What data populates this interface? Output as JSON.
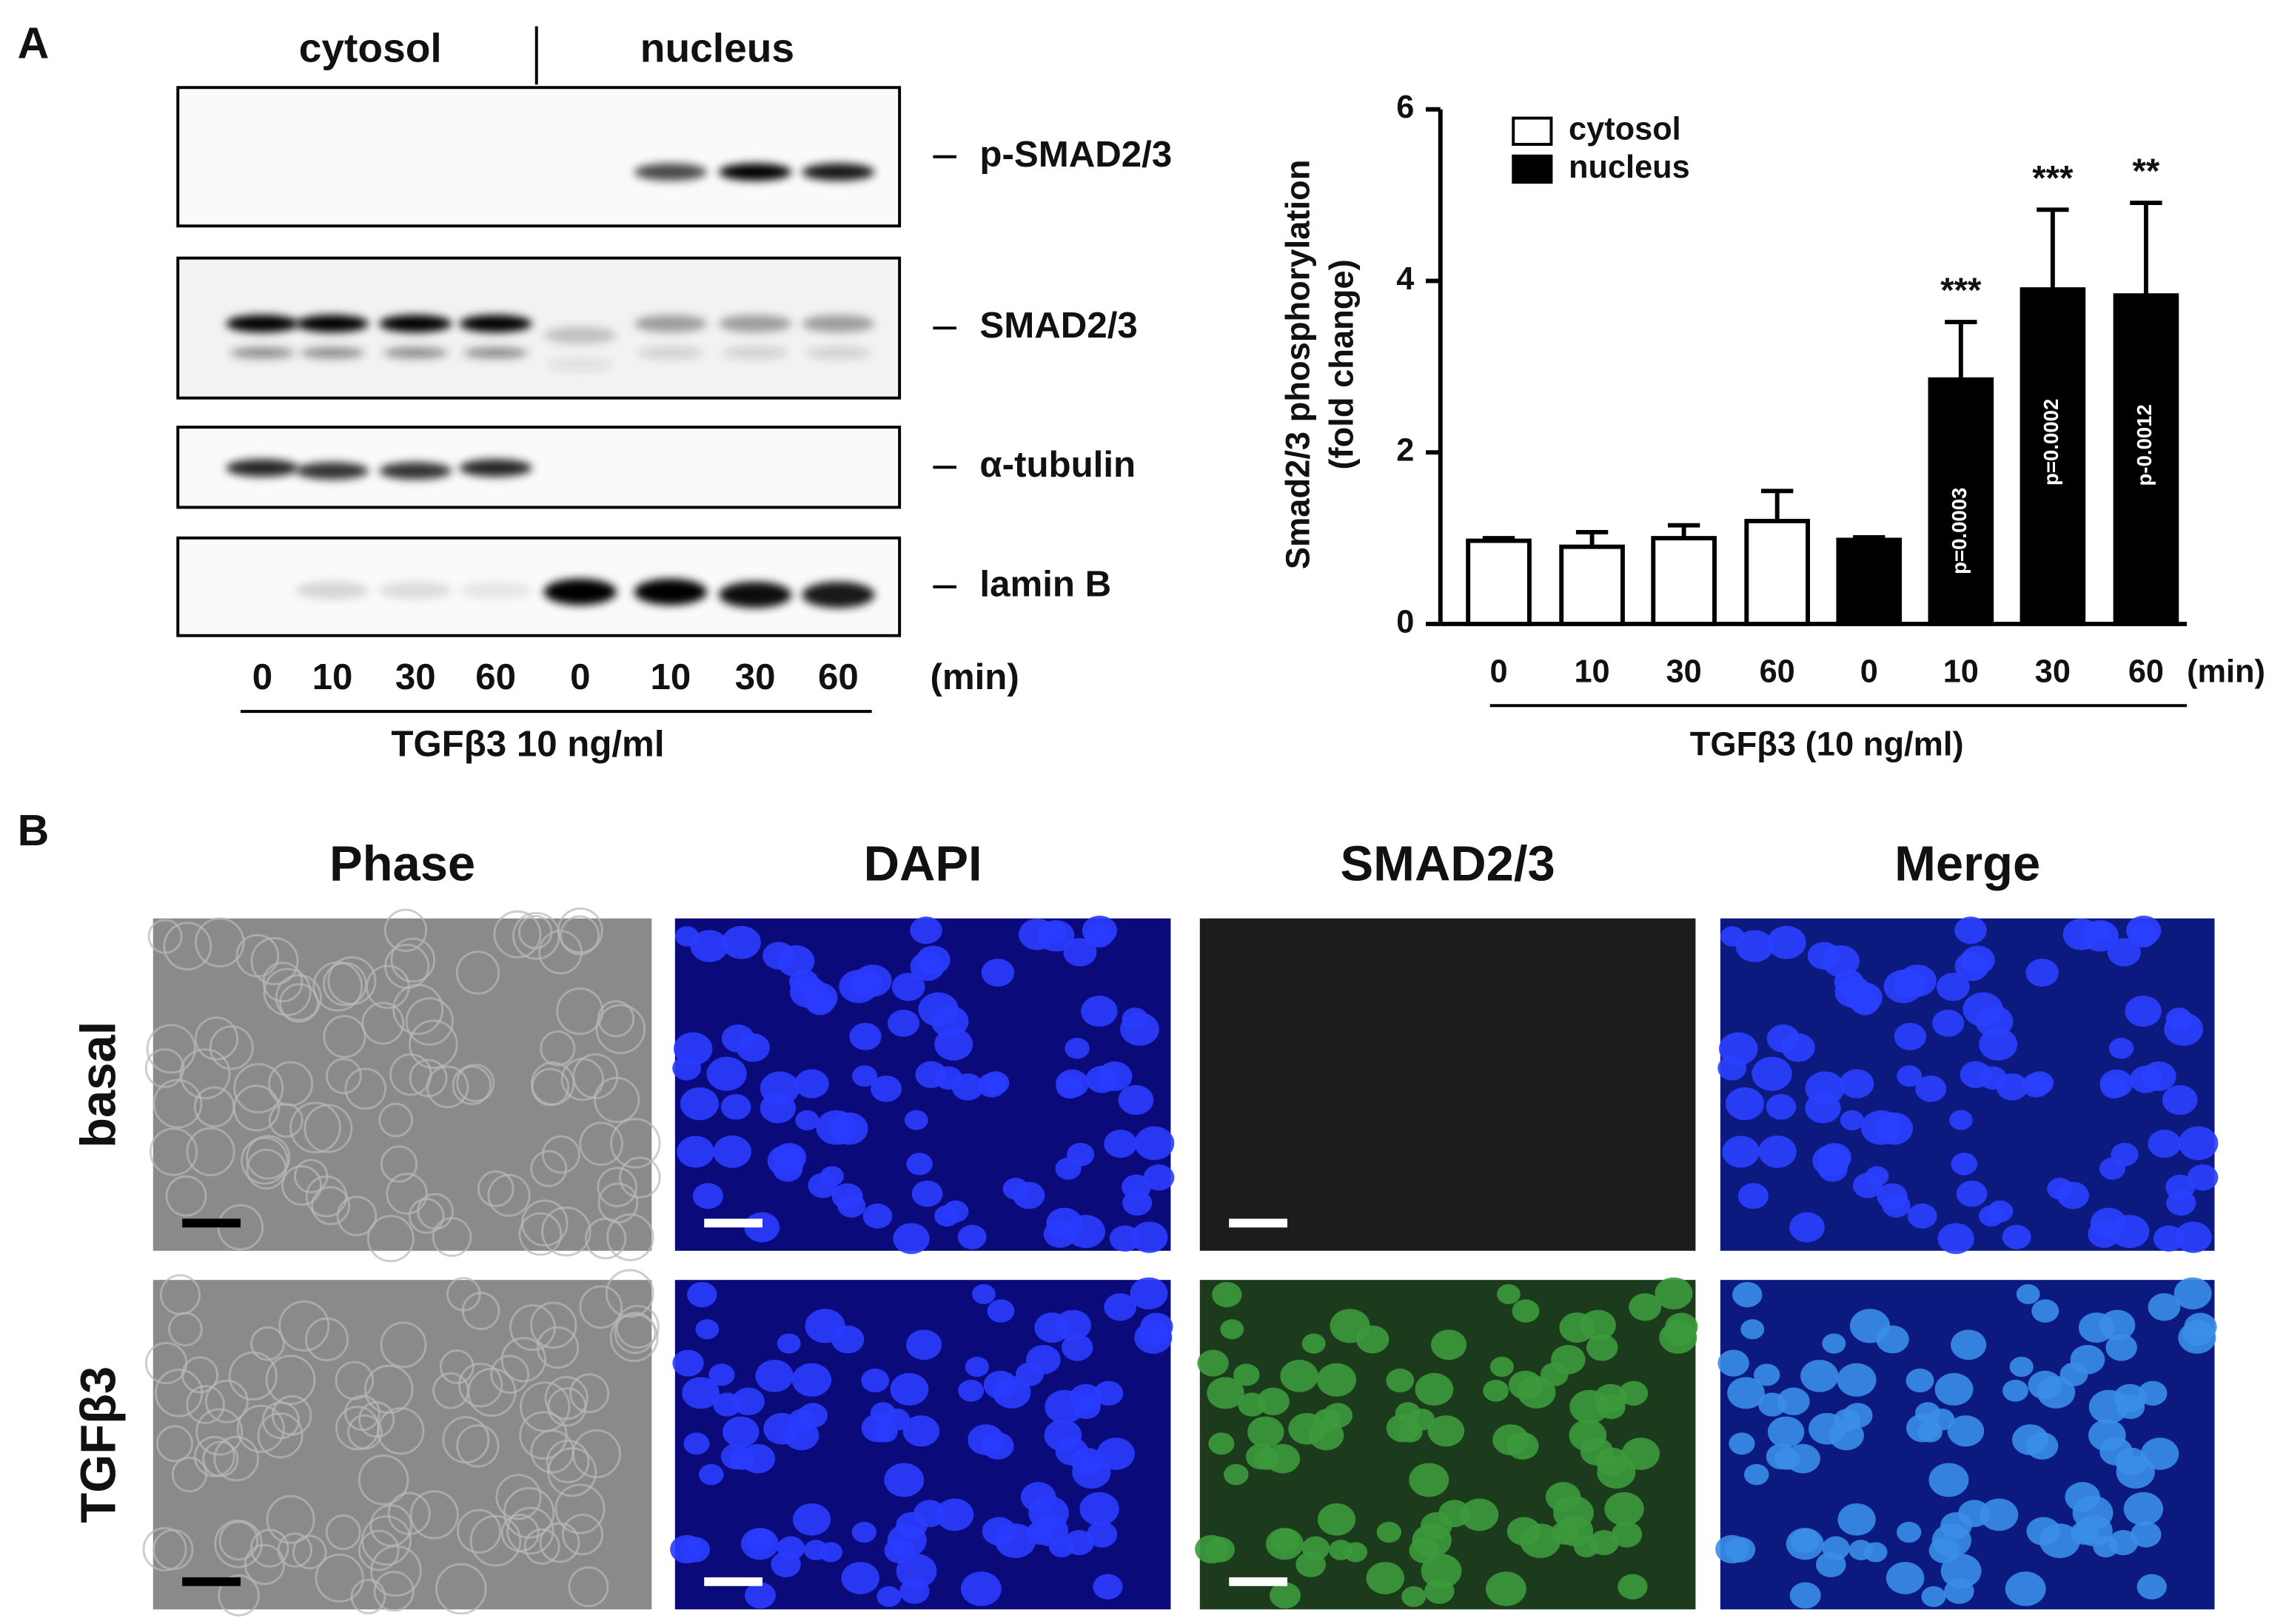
{
  "panel_a": {
    "label": "A",
    "fractions": [
      "cytosol",
      "nucleus"
    ],
    "proteins": [
      "p-SMAD2/3",
      "SMAD2/3",
      "α-tubulin",
      "lamin B"
    ],
    "lanes": [
      "0",
      "10",
      "30",
      "60",
      "0",
      "10",
      "30",
      "60"
    ],
    "time_unit": "(min)",
    "treatment": "TGFβ3 10 ng/ml"
  },
  "chart_data": {
    "type": "bar",
    "ylabel_lines": [
      "Smad2/3 phosphorylation",
      "(fold change)"
    ],
    "categories": [
      "0",
      "10",
      "30",
      "60",
      "0",
      "10",
      "30",
      "60"
    ],
    "x_unit": "(min)",
    "xlabel": "TGFβ3 (10 ng/ml)",
    "ylim": [
      0,
      6
    ],
    "yticks": [
      0,
      2,
      4,
      6
    ],
    "series": [
      {
        "name": "cytosol",
        "color": "#ffffff",
        "values": [
          0.97,
          0.9,
          1.0,
          1.2,
          null,
          null,
          null,
          null
        ],
        "errors": [
          0.03,
          0.17,
          0.15,
          0.35,
          null,
          null,
          null,
          null
        ]
      },
      {
        "name": "nucleus",
        "color": "#000000",
        "values": [
          null,
          null,
          null,
          null,
          0.98,
          2.85,
          3.9,
          3.83
        ],
        "errors": [
          null,
          null,
          null,
          null,
          0.03,
          0.67,
          0.93,
          1.08
        ],
        "significance": [
          null,
          null,
          null,
          null,
          null,
          "***",
          "***",
          "**"
        ],
        "p_labels": [
          null,
          null,
          null,
          null,
          null,
          "p=0.0003",
          "p=0.0002",
          "p-0.0012"
        ]
      }
    ]
  },
  "panel_b": {
    "label": "B",
    "columns": [
      "Phase",
      "DAPI",
      "SMAD2/3",
      "Merge"
    ],
    "rows": [
      "basal",
      "TGFβ3"
    ]
  }
}
